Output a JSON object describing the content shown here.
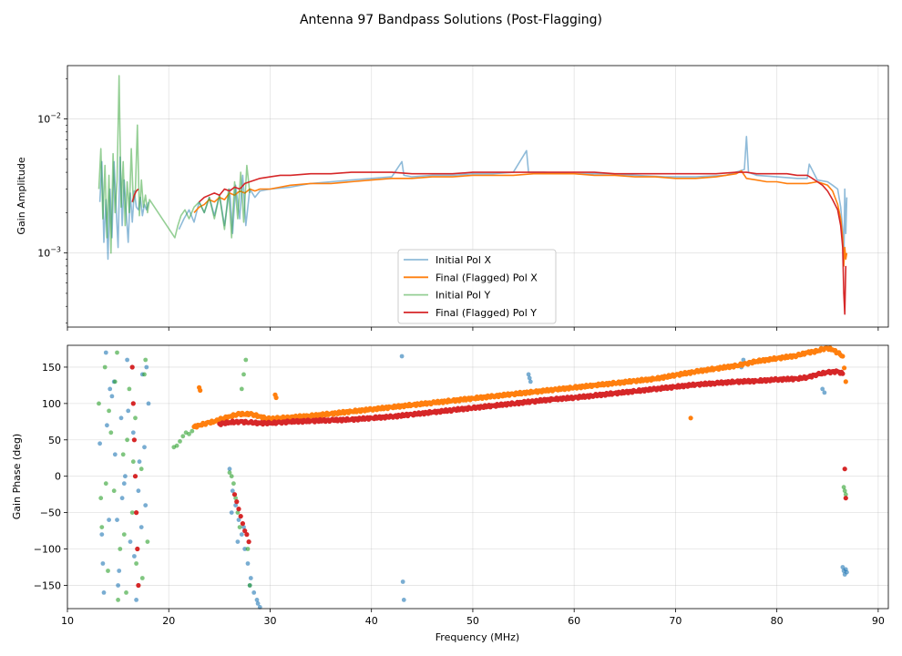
{
  "figure": {
    "title": "Antenna 97 Bandpass Solutions (Post-Flagging)",
    "xlabel": "Frequency (MHz)"
  },
  "chart_data": [
    {
      "type": "line",
      "title": "",
      "xlabel": "",
      "ylabel": "Gain Amplitude",
      "yscale": "log",
      "xlim": [
        10,
        91
      ],
      "ylim": [
        0.00028,
        0.025
      ],
      "xticks": [
        10,
        20,
        30,
        40,
        50,
        60,
        70,
        80,
        90
      ],
      "yticks": [
        {
          "value": 0.001,
          "label": "10^-3"
        },
        {
          "value": 0.01,
          "label": "10^-2"
        }
      ],
      "grid": true,
      "legend": {
        "position": "lower-center"
      },
      "series": [
        {
          "name": "Initial Pol X",
          "color": "#1f77b4",
          "x": [
            13.2,
            13.4,
            13.6,
            13.8,
            14.0,
            14.2,
            14.4,
            14.6,
            14.8,
            15.0,
            15.2,
            15.4,
            15.6,
            15.8,
            16.0,
            16.2,
            16.4,
            16.6,
            16.8,
            17.0,
            17.2,
            17.4,
            17.6,
            17.8,
            18.0,
            20.6,
            21.0,
            21.5,
            22.0,
            22.5,
            23.0,
            23.5,
            24.0,
            24.5,
            25.0,
            25.5,
            26.0,
            26.3,
            26.6,
            27.0,
            27.3,
            27.6,
            28.0,
            28.5,
            29.0,
            30,
            32,
            34,
            36,
            38,
            40,
            42,
            43,
            43.2,
            44,
            46,
            48,
            50,
            52,
            54,
            55.3,
            55.5,
            55.7,
            57,
            60,
            63,
            66,
            69,
            72,
            75,
            76.8,
            77.0,
            77.2,
            78,
            80,
            82,
            83,
            83.2,
            84,
            85,
            85.5,
            86,
            86.3,
            86.5,
            86.6,
            86.7,
            86.8,
            86.9
          ],
          "y": [
            0.0024,
            0.0048,
            0.0012,
            0.0025,
            0.0009,
            0.003,
            0.0013,
            0.0048,
            0.0022,
            0.0011,
            0.0052,
            0.0016,
            0.0035,
            0.002,
            0.0012,
            0.0028,
            0.0017,
            0.0029,
            0.0022,
            0.0021,
            0.0026,
            0.0019,
            0.0023,
            0.0021,
            0.0024,
            null,
            0.0015,
            0.0018,
            0.0021,
            0.0017,
            0.0024,
            0.002,
            0.0026,
            0.0019,
            0.0027,
            0.0016,
            0.003,
            0.0014,
            0.0032,
            0.0018,
            0.0038,
            0.0016,
            0.003,
            0.0026,
            0.0029,
            0.003,
            0.0031,
            0.0033,
            0.0034,
            0.0035,
            0.0036,
            0.0037,
            0.0048,
            0.0038,
            0.0037,
            0.0038,
            0.0038,
            0.0039,
            0.0039,
            0.004,
            0.0058,
            0.004,
            0.004,
            0.004,
            0.0039,
            0.0039,
            0.0038,
            0.0037,
            0.0037,
            0.0038,
            0.0042,
            0.0074,
            0.004,
            0.0038,
            0.0037,
            0.0036,
            0.0036,
            0.0046,
            0.0035,
            0.0034,
            0.0032,
            0.003,
            0.0022,
            0.0015,
            0.0008,
            0.003,
            0.0014,
            0.0026
          ]
        },
        {
          "name": "Final (Flagged) Pol X",
          "color": "#ff7f0e",
          "x": [
            22.5,
            23.0,
            23.5,
            24.0,
            24.5,
            25.0,
            25.5,
            26.0,
            26.5,
            27.0,
            27.5,
            28.0,
            28.5,
            29.0,
            30,
            31,
            32,
            34,
            36,
            38,
            40,
            42,
            44,
            46,
            48,
            50,
            52,
            54,
            56,
            58,
            60,
            62,
            64,
            66,
            68,
            70,
            72,
            74,
            76,
            76.5,
            77,
            78,
            79,
            80,
            81,
            82,
            83,
            84,
            84.5,
            85,
            85.5,
            86,
            86.3,
            86.5,
            86.6,
            86.7,
            86.8,
            86.9
          ],
          "y": [
            0.002,
            0.0022,
            0.0023,
            0.0025,
            0.0024,
            0.0026,
            0.0025,
            0.0028,
            0.0027,
            0.0029,
            0.0028,
            0.003,
            0.0029,
            0.003,
            0.003,
            0.0031,
            0.0032,
            0.0033,
            0.0033,
            0.0034,
            0.0035,
            0.0036,
            0.0036,
            0.0037,
            0.0037,
            0.0038,
            0.0038,
            0.0038,
            0.0039,
            0.0039,
            0.0039,
            0.0038,
            0.0038,
            0.0037,
            0.0037,
            0.0036,
            0.0036,
            0.0037,
            0.0039,
            0.0041,
            0.0036,
            0.0035,
            0.0034,
            0.0034,
            0.0033,
            0.0033,
            0.0033,
            0.0034,
            0.0033,
            0.0032,
            0.0029,
            0.0023,
            0.0018,
            0.0013,
            0.0008,
            0.0011,
            0.0009,
            0.001
          ]
        },
        {
          "name": "Initial Pol Y",
          "color": "#2ca02c",
          "x": [
            13.1,
            13.3,
            13.5,
            13.7,
            13.9,
            14.1,
            14.3,
            14.5,
            14.7,
            14.9,
            15.1,
            15.3,
            15.5,
            15.7,
            15.9,
            16.1,
            16.3,
            16.5,
            16.7,
            16.9,
            17.1,
            17.3,
            17.5,
            17.7,
            17.9,
            18.1,
            20.6,
            20.9,
            21.2,
            21.6,
            22.0,
            22.5,
            23.0,
            23.5,
            24.0,
            24.5,
            25.0,
            25.5,
            25.9,
            26.2,
            26.5,
            26.8,
            27.1,
            27.4,
            27.7,
            28.0
          ],
          "y": [
            0.003,
            0.006,
            0.0018,
            0.0045,
            0.0013,
            0.0038,
            0.001,
            0.0055,
            0.002,
            0.0035,
            0.021,
            0.0022,
            0.0048,
            0.0016,
            0.0034,
            0.002,
            0.006,
            0.0024,
            0.0028,
            0.009,
            0.0019,
            0.0035,
            0.0022,
            0.0027,
            0.002,
            0.0025,
            0.0013,
            0.0016,
            0.0019,
            0.0021,
            0.0018,
            0.0022,
            0.0024,
            0.002,
            0.0026,
            0.0018,
            0.0027,
            0.0015,
            0.003,
            0.0013,
            0.0034,
            0.0018,
            0.004,
            0.0017,
            0.0045,
            0.0028
          ]
        },
        {
          "name": "Final (Flagged) Pol Y",
          "color": "#d62728",
          "x": [
            16.4,
            16.6,
            16.8,
            17.0,
            22.5,
            23.0,
            23.5,
            24.0,
            24.5,
            25.0,
            25.5,
            26.0,
            26.5,
            27.0,
            27.5,
            28.0,
            28.5,
            29.0,
            30,
            31,
            32,
            34,
            36,
            38,
            40,
            42,
            44,
            46,
            48,
            50,
            52,
            54,
            56,
            58,
            60,
            62,
            64,
            66,
            68,
            70,
            72,
            74,
            76,
            77,
            78,
            80,
            81,
            82,
            83,
            83.5,
            84,
            84.5,
            85,
            85.5,
            86,
            86.3,
            86.5,
            86.6,
            86.7,
            86.8
          ],
          "y": [
            0.0024,
            0.0027,
            0.0029,
            0.003,
            null,
            0.0024,
            0.0026,
            0.0027,
            0.0028,
            0.0027,
            0.003,
            0.0029,
            0.0031,
            0.003,
            0.0033,
            0.0034,
            0.0035,
            0.0036,
            0.0037,
            0.0038,
            0.0038,
            0.0039,
            0.0039,
            0.004,
            0.004,
            0.004,
            0.0039,
            0.0039,
            0.0039,
            0.004,
            0.004,
            0.004,
            0.004,
            0.004,
            0.004,
            0.004,
            0.0039,
            0.0039,
            0.0039,
            0.0039,
            0.0039,
            0.0039,
            0.004,
            0.004,
            0.0039,
            0.0039,
            0.0039,
            0.0038,
            0.0038,
            0.0036,
            0.0034,
            0.0032,
            0.0029,
            0.0025,
            0.0021,
            0.0016,
            0.0011,
            0.0005,
            0.00035,
            0.0008
          ]
        }
      ]
    },
    {
      "type": "scatter",
      "title": "",
      "xlabel": "Frequency (MHz)",
      "ylabel": "Gain Phase (deg)",
      "xlim": [
        10,
        91
      ],
      "ylim": [
        -182,
        180
      ],
      "xticks": [
        10,
        20,
        30,
        40,
        50,
        60,
        70,
        80,
        90
      ],
      "yticks": [
        -150,
        -100,
        -50,
        0,
        50,
        100,
        150
      ],
      "grid": true,
      "series": [
        {
          "name": "Initial Pol X",
          "color": "#1f77b4",
          "x": [
            13.2,
            13.5,
            13.8,
            14.1,
            14.4,
            14.7,
            15.0,
            15.3,
            15.6,
            15.9,
            16.2,
            16.5,
            16.8,
            17.1,
            17.4,
            17.7,
            18.0,
            13.4,
            14.2,
            15.1,
            16.0,
            17.0,
            17.8,
            13.9,
            14.9,
            15.7,
            16.6,
            17.6,
            13.6,
            14.6,
            15.4,
            16.4,
            17.3,
            26.0,
            26.3,
            26.6,
            26.9,
            27.2,
            27.5,
            27.8,
            28.1,
            28.4,
            28.7,
            29.0,
            26.2,
            26.8,
            27.4,
            28.0,
            28.8,
            43.0,
            43.1,
            43.2,
            55.5,
            55.6,
            55.7,
            76.5,
            76.7,
            86.5,
            86.6,
            86.7,
            86.8,
            86.9,
            84.5,
            84.7
          ],
          "y": [
            45,
            -120,
            170,
            -60,
            110,
            30,
            -150,
            80,
            -10,
            160,
            -90,
            60,
            -170,
            20,
            140,
            -40,
            100,
            -80,
            120,
            -130,
            90,
            -20,
            150,
            70,
            -60,
            0,
            -110,
            40,
            -160,
            130,
            -30,
            150,
            -70,
            10,
            -20,
            -40,
            -60,
            -80,
            -100,
            -120,
            -140,
            -160,
            -170,
            -180,
            -50,
            -90,
            -70,
            -150,
            -175,
            165,
            -145,
            -170,
            140,
            135,
            130,
            150,
            160,
            -125,
            -130,
            -135,
            -128,
            -132,
            120,
            115
          ]
        },
        {
          "name": "Final (Flagged) Pol X",
          "color": "#ff7f0e",
          "x": [
            22.5,
            23.0,
            23.5,
            24.0,
            24.5,
            25.0,
            25.5,
            26.0,
            26.5,
            27.0,
            27.5,
            28.0,
            28.5,
            29.0,
            29.5,
            30,
            31,
            32,
            34,
            36,
            38,
            40,
            42,
            44,
            46,
            48,
            50,
            52,
            54,
            56,
            58,
            60,
            62,
            64,
            66,
            68,
            70,
            72,
            74,
            76,
            77,
            78,
            80,
            82,
            83,
            84,
            84.5,
            85,
            85.5,
            86,
            86.5,
            86.8
          ],
          "y": [
            68,
            70,
            72,
            74,
            75,
            78,
            80,
            82,
            84,
            86,
            85,
            86,
            84,
            82,
            80,
            79,
            80,
            81,
            83,
            86,
            89,
            92,
            95,
            98,
            101,
            104,
            107,
            110,
            113,
            116,
            119,
            122,
            125,
            128,
            131,
            134,
            139,
            144,
            148,
            152,
            155,
            158,
            162,
            166,
            170,
            172,
            175,
            176,
            174,
            170,
            165,
            130
          ],
          "outliers": {
            "x": [
              71.5,
              23.0,
              23.1,
              30.5,
              30.6
            ],
            "y": [
              80,
              122,
              118,
              112,
              108
            ]
          }
        },
        {
          "name": "Initial Pol Y",
          "color": "#2ca02c",
          "x": [
            13.1,
            13.4,
            13.7,
            14.0,
            14.3,
            14.6,
            14.9,
            15.2,
            15.5,
            15.8,
            16.1,
            16.4,
            16.7,
            17.0,
            17.3,
            17.6,
            17.9,
            13.3,
            14.1,
            15.0,
            15.9,
            16.8,
            17.7,
            13.8,
            14.7,
            15.6,
            16.5,
            17.4,
            20.5,
            20.8,
            21.1,
            21.4,
            21.7,
            22.0,
            22.3,
            26.0,
            26.2,
            26.4,
            26.6,
            26.8,
            27.0,
            27.2,
            27.4,
            27.6,
            27.8,
            28.0,
            86.6,
            86.7,
            86.8
          ],
          "y": [
            100,
            -70,
            150,
            -130,
            60,
            -20,
            170,
            -100,
            30,
            -160,
            120,
            -50,
            80,
            -150,
            10,
            140,
            -90,
            -30,
            90,
            -170,
            50,
            -120,
            160,
            -10,
            130,
            -80,
            20,
            -140,
            40,
            42,
            48,
            55,
            60,
            58,
            62,
            5,
            0,
            -10,
            -30,
            -50,
            -70,
            120,
            140,
            160,
            -100,
            -150,
            -15,
            -20,
            -25
          ]
        },
        {
          "name": "Final (Flagged) Pol Y",
          "color": "#d62728",
          "x": [
            16.4,
            16.5,
            16.6,
            16.7,
            16.8,
            16.9,
            17.0,
            26.5,
            26.7,
            26.9,
            27.1,
            27.3,
            27.5,
            27.7,
            27.9,
            25.0,
            26.0,
            27.0,
            28.0,
            29.0,
            30,
            31,
            32,
            34,
            36,
            38,
            40,
            42,
            44,
            46,
            48,
            50,
            52,
            54,
            56,
            58,
            60,
            62,
            64,
            66,
            68,
            70,
            72,
            74,
            76,
            78,
            80,
            82,
            83,
            84,
            85,
            86,
            86.5,
            86.7,
            86.8
          ],
          "y": [
            150,
            100,
            50,
            0,
            -50,
            -100,
            -150,
            -25,
            -35,
            -45,
            -55,
            -65,
            -75,
            -80,
            -90,
            72,
            74,
            75,
            74,
            73,
            73,
            74,
            75,
            76,
            77,
            78,
            80,
            82,
            85,
            88,
            91,
            94,
            97,
            100,
            103,
            106,
            108,
            111,
            114,
            117,
            120,
            123,
            126,
            128,
            130,
            131,
            133,
            134,
            136,
            140,
            143,
            144,
            141,
            10,
            -30
          ]
        }
      ]
    }
  ]
}
